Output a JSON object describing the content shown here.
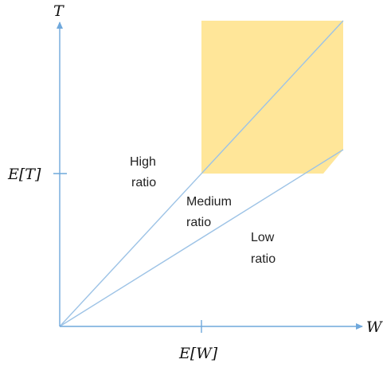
{
  "axes": {
    "x_label": "W",
    "y_label": "T",
    "x_mean_label": "E[W]",
    "y_mean_label": "E[T]"
  },
  "regions": {
    "high": {
      "line1": "High",
      "line2": "ratio"
    },
    "medium": {
      "line1": "Medium",
      "line2": "ratio"
    },
    "low": {
      "line1": "Low",
      "line2": "ratio"
    }
  },
  "colors": {
    "axis": "#6fa8dc",
    "ray": "#9dc3e6",
    "highlight": "#ffe699"
  }
}
